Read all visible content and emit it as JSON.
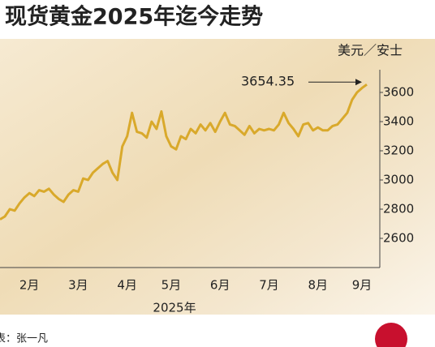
{
  "chart_data": {
    "type": "line",
    "title": "现货黄金2025年迄今走势",
    "unit": "美元／安士",
    "xlabel": "2025年",
    "source": "表：张一凡",
    "categories": [
      null,
      null,
      null,
      null,
      null,
      null,
      "2月",
      null,
      null,
      null,
      null,
      null,
      null,
      null,
      null,
      null,
      "3月",
      null,
      null,
      null,
      null,
      null,
      null,
      null,
      null,
      null,
      "4月",
      null,
      null,
      null,
      null,
      null,
      null,
      null,
      null,
      "5月",
      null,
      null,
      null,
      null,
      null,
      null,
      null,
      null,
      null,
      "6月",
      null,
      null,
      null,
      null,
      null,
      null,
      null,
      null,
      null,
      "7月",
      null,
      null,
      null,
      null,
      null,
      null,
      null,
      null,
      null,
      "8月",
      null,
      null,
      null,
      null,
      null,
      null,
      null,
      null,
      "9月",
      null
    ],
    "series": [
      {
        "name": "现货黄金",
        "color": "#d9a92b",
        "values": [
          2730,
          2750,
          2800,
          2790,
          2840,
          2880,
          2910,
          2890,
          2930,
          2920,
          2940,
          2900,
          2870,
          2850,
          2900,
          2930,
          2920,
          3010,
          3000,
          3050,
          3080,
          3110,
          3130,
          3050,
          3000,
          3230,
          3300,
          3460,
          3330,
          3320,
          3290,
          3400,
          3350,
          3470,
          3300,
          3230,
          3210,
          3300,
          3280,
          3350,
          3320,
          3380,
          3340,
          3390,
          3330,
          3400,
          3460,
          3380,
          3370,
          3340,
          3310,
          3370,
          3320,
          3350,
          3340,
          3350,
          3340,
          3380,
          3460,
          3390,
          3350,
          3300,
          3380,
          3390,
          3340,
          3360,
          3340,
          3340,
          3370,
          3380,
          3420,
          3460,
          3550,
          3600,
          3630,
          3654.35
        ]
      }
    ],
    "ylim": [
      2400,
      3750
    ],
    "yticks": [
      2600,
      2800,
      3000,
      3200,
      3400,
      3600
    ]
  }
}
